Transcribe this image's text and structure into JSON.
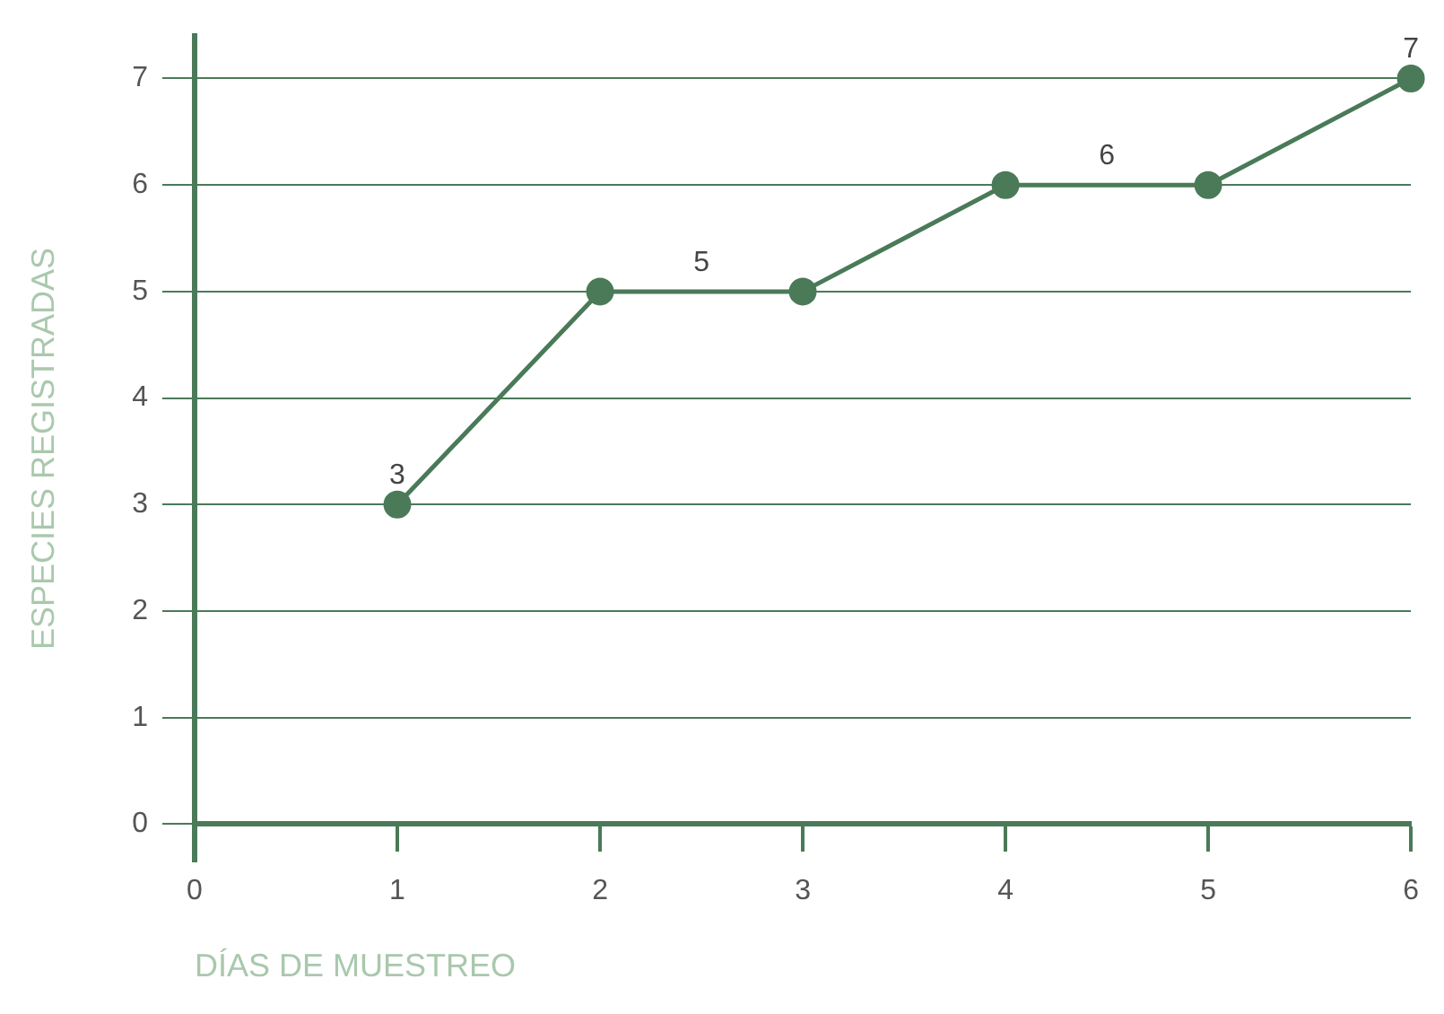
{
  "chart_data": {
    "type": "line",
    "xlabel": "DÍAS DE MUESTREO",
    "ylabel": "ESPECIES REGISTRADAS",
    "x": [
      1,
      2,
      3,
      4,
      5,
      6
    ],
    "series": [
      {
        "color": "#4a7a58",
        "values": [
          3,
          5,
          5,
          6,
          6,
          7
        ]
      }
    ],
    "xlim": [
      0,
      6
    ],
    "ylim": [
      -0.35,
      7.4
    ],
    "xticks": [
      0,
      1,
      2,
      3,
      4,
      5,
      6
    ],
    "yticks": [
      0,
      1,
      2,
      3,
      4,
      5,
      6,
      7
    ],
    "grid": "y",
    "marker": "circle",
    "line_style": "solid",
    "annotations": [
      {
        "text": "3",
        "x": 1,
        "y": 3
      },
      {
        "text": "5",
        "x": 2.5,
        "y": 5
      },
      {
        "text": "6",
        "x": 4.5,
        "y": 6
      },
      {
        "text": "7",
        "x": 6,
        "y": 7
      }
    ]
  }
}
